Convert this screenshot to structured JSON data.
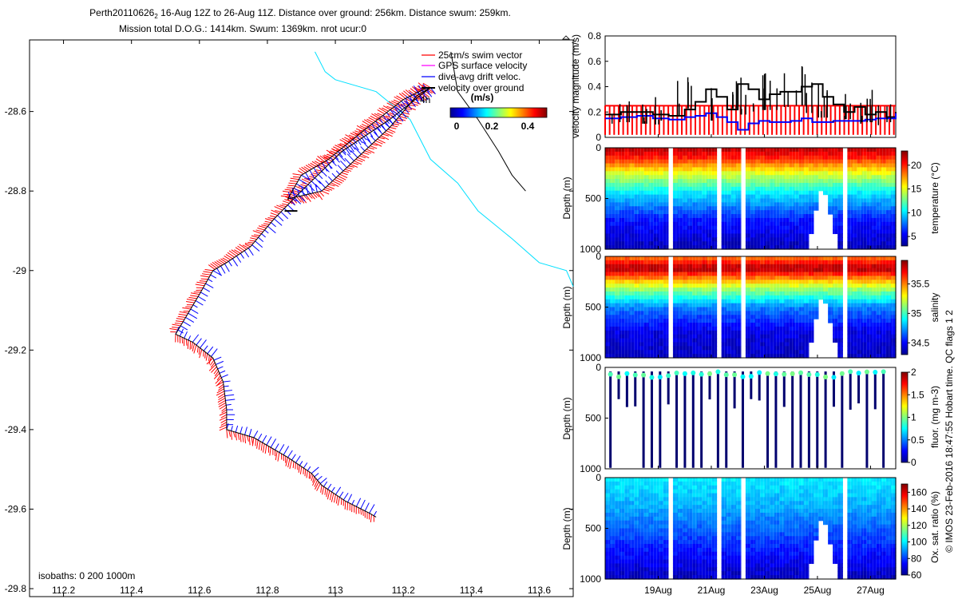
{
  "header": {
    "title_line1": "Perth20110626",
    "title_sub": "2",
    "title_rest": " 16-Aug 12Z to 26-Aug 11Z. Distance over ground: 256km. Distance swum: 259km.",
    "title_line2": "Mission total D.O.G.: 1414km. Swum: 1369km. nrot ucur:0"
  },
  "side_note": "© IMOS 23-Feb-2016 18:47:55 Hobart time. QC flags 1  2",
  "colors": {
    "swim": "#ff0000",
    "gps": "#ff00ff",
    "drift": "#0000ff",
    "ground": "#000000",
    "isobath": "#00e0ff"
  },
  "chart_data": [
    {
      "type": "line",
      "name": "track-map",
      "xlabel": "",
      "ylabel": "",
      "xlim": [
        112.1,
        113.7
      ],
      "ylim": [
        -29.82,
        -28.42
      ],
      "xticks": [
        112.2,
        112.4,
        112.6,
        112.8,
        113,
        113.2,
        113.4,
        113.6
      ],
      "xtick_labels": [
        "112.2",
        "112.4",
        "112.6",
        "112.8",
        "113",
        "113.2",
        "113.4",
        "113.6"
      ],
      "yticks": [
        -28.6,
        -28.8,
        -29,
        -29.2,
        -29.4,
        -29.6,
        -29.8
      ],
      "ytick_labels": [
        "-28.6",
        "-28.8",
        "-29",
        "-29.2",
        "-29.4",
        "-29.6",
        "-29.8"
      ],
      "legend": [
        "25cm/s swim vector",
        "GPS surface velocity",
        "dive-avg drift veloc.",
        "velocity over ground"
      ],
      "legend_label_4h": "4h",
      "colorbar_title": "(m/s)",
      "colorbar_ticks": [
        "0",
        "0.2",
        "0.4"
      ],
      "isobath_label": "isobaths: 0   200  1000m",
      "track": [
        {
          "lon": 113.27,
          "lat": -28.54
        },
        {
          "lon": 113.2,
          "lat": -28.57
        },
        {
          "lon": 113.08,
          "lat": -28.65
        },
        {
          "lon": 112.98,
          "lat": -28.72
        },
        {
          "lon": 112.9,
          "lat": -28.76
        },
        {
          "lon": 112.86,
          "lat": -28.82
        },
        {
          "lon": 112.96,
          "lat": -28.8
        },
        {
          "lon": 113.06,
          "lat": -28.72
        },
        {
          "lon": 113.16,
          "lat": -28.64
        },
        {
          "lon": 113.24,
          "lat": -28.56
        },
        {
          "lon": 113.28,
          "lat": -28.54
        },
        {
          "lon": 113.16,
          "lat": -28.62
        },
        {
          "lon": 113.02,
          "lat": -28.7
        },
        {
          "lon": 112.9,
          "lat": -28.8
        },
        {
          "lon": 112.82,
          "lat": -28.87
        },
        {
          "lon": 112.75,
          "lat": -28.94
        },
        {
          "lon": 112.68,
          "lat": -28.98
        },
        {
          "lon": 112.64,
          "lat": -29.0
        },
        {
          "lon": 112.6,
          "lat": -29.06
        },
        {
          "lon": 112.53,
          "lat": -29.16
        },
        {
          "lon": 112.58,
          "lat": -29.18
        },
        {
          "lon": 112.64,
          "lat": -29.22
        },
        {
          "lon": 112.67,
          "lat": -29.28
        },
        {
          "lon": 112.68,
          "lat": -29.35
        },
        {
          "lon": 112.68,
          "lat": -29.4
        },
        {
          "lon": 112.76,
          "lat": -29.42
        },
        {
          "lon": 112.86,
          "lat": -29.47
        },
        {
          "lon": 112.93,
          "lat": -29.51
        },
        {
          "lon": 112.96,
          "lat": -29.54
        },
        {
          "lon": 113.03,
          "lat": -29.58
        },
        {
          "lon": 113.1,
          "lat": -29.61
        },
        {
          "lon": 113.12,
          "lat": -29.62
        }
      ],
      "isobath_0": [
        {
          "lon": 112.94,
          "lat": -28.45
        },
        {
          "lon": 112.97,
          "lat": -28.5
        },
        {
          "lon": 113.0,
          "lat": -28.52
        },
        {
          "lon": 113.12,
          "lat": -28.55
        },
        {
          "lon": 113.22,
          "lat": -28.62
        },
        {
          "lon": 113.28,
          "lat": -28.72
        },
        {
          "lon": 113.36,
          "lat": -28.78
        },
        {
          "lon": 113.42,
          "lat": -28.85
        },
        {
          "lon": 113.52,
          "lat": -28.92
        },
        {
          "lon": 113.6,
          "lat": -28.98
        },
        {
          "lon": 113.68,
          "lat": -29.0
        },
        {
          "lon": 113.7,
          "lat": -29.04
        }
      ],
      "isobath_200": [
        {
          "lon": 113.34,
          "lat": -28.45
        },
        {
          "lon": 113.36,
          "lat": -28.55
        },
        {
          "lon": 113.42,
          "lat": -28.62
        },
        {
          "lon": 113.48,
          "lat": -28.7
        },
        {
          "lon": 113.52,
          "lat": -28.76
        },
        {
          "lon": 113.56,
          "lat": -28.8
        }
      ]
    },
    {
      "type": "line",
      "name": "velocity-magnitude",
      "ylabel": "velocity magnitude (m/s)",
      "xlim": [
        17.0,
        27.95
      ],
      "ylim": [
        0,
        0.8
      ],
      "yticks": [
        0,
        0.2,
        0.4,
        0.6,
        0.8
      ],
      "ytick_labels": [
        "0",
        "0.2",
        "0.4",
        "0.6",
        "0.8"
      ],
      "series": [
        {
          "name": "velocity over ground",
          "color": "#000000",
          "x": [
            17.0,
            17.6,
            18.2,
            18.8,
            19.4,
            20.0,
            20.4,
            20.8,
            21.2,
            21.6,
            22.0,
            22.4,
            22.8,
            23.2,
            23.6,
            24.0,
            24.4,
            24.8,
            25.2,
            25.6,
            26.0,
            26.4,
            26.8,
            27.2,
            27.6,
            27.95
          ],
          "y": [
            0.18,
            0.2,
            0.2,
            0.18,
            0.17,
            0.22,
            0.28,
            0.38,
            0.32,
            0.22,
            0.42,
            0.38,
            0.3,
            0.34,
            0.36,
            0.36,
            0.4,
            0.42,
            0.32,
            0.26,
            0.2,
            0.24,
            0.18,
            0.2,
            0.16,
            0.2
          ]
        },
        {
          "name": "dive-avg drift veloc.",
          "color": "#0000ff",
          "x": [
            17.0,
            17.6,
            18.2,
            18.8,
            19.4,
            20.0,
            20.4,
            20.8,
            21.2,
            21.6,
            22.0,
            22.4,
            22.8,
            23.2,
            23.6,
            24.0,
            24.4,
            24.8,
            25.2,
            25.6,
            26.0,
            26.4,
            26.8,
            27.2,
            27.6,
            27.95
          ],
          "y": [
            0.15,
            0.16,
            0.17,
            0.15,
            0.14,
            0.16,
            0.17,
            0.19,
            0.16,
            0.12,
            0.06,
            0.11,
            0.13,
            0.12,
            0.12,
            0.13,
            0.15,
            0.12,
            0.12,
            0.13,
            0.13,
            0.13,
            0.14,
            0.15,
            0.15,
            0.19
          ]
        },
        {
          "name": "25cm/s swim vector",
          "color": "#ff0000",
          "constant": 0.25
        }
      ]
    },
    {
      "type": "heatmap",
      "name": "temperature-section",
      "ylabel": "Depth (m)",
      "colorbar_label": "temperature (°C)",
      "ylim": [
        0,
        1000
      ],
      "yticks": [
        0,
        500,
        1000
      ],
      "ytick_labels": [
        "0",
        "500",
        "1000"
      ],
      "clim": [
        3,
        23
      ],
      "colorbar_ticks": [
        5,
        10,
        15,
        20
      ],
      "colorbar_tick_labels": [
        "5",
        "10",
        "15",
        "20"
      ],
      "profile": [
        {
          "depth": 0,
          "value": 22
        },
        {
          "depth": 100,
          "value": 20
        },
        {
          "depth": 250,
          "value": 15
        },
        {
          "depth": 450,
          "value": 10
        },
        {
          "depth": 700,
          "value": 6
        },
        {
          "depth": 1000,
          "value": 4
        }
      ]
    },
    {
      "type": "heatmap",
      "name": "salinity-section",
      "ylabel": "Depth (m)",
      "colorbar_label": "salinity",
      "ylim": [
        0,
        1000
      ],
      "yticks": [
        0,
        500,
        1000
      ],
      "ytick_labels": [
        "0",
        "500",
        "1000"
      ],
      "clim": [
        34.3,
        35.9
      ],
      "colorbar_ticks": [
        34.5,
        35,
        35.5
      ],
      "colorbar_tick_labels": [
        "34.5",
        "35",
        "35.5"
      ],
      "profile": [
        {
          "depth": 0,
          "value": 35.5
        },
        {
          "depth": 120,
          "value": 35.85
        },
        {
          "depth": 300,
          "value": 35.2
        },
        {
          "depth": 500,
          "value": 34.7
        },
        {
          "depth": 750,
          "value": 34.45
        },
        {
          "depth": 1000,
          "value": 34.4
        }
      ]
    },
    {
      "type": "scatter",
      "name": "fluorescence-section",
      "ylabel": "Depth (m)",
      "colorbar_label": "fluor. (mg m-3)",
      "ylim": [
        0,
        1000
      ],
      "yticks": [
        0,
        500,
        1000
      ],
      "ytick_labels": [
        "0",
        "500",
        "1000"
      ],
      "clim": [
        0,
        2
      ],
      "colorbar_ticks": [
        0,
        0.5,
        1,
        1.5,
        2
      ],
      "colorbar_tick_labels": [
        "0",
        "0.5",
        "1",
        "1.5",
        "2"
      ]
    },
    {
      "type": "heatmap",
      "name": "oxygen-saturation-section",
      "ylabel": "Depth (m)",
      "colorbar_label": "Ox. sat. ratio (%)",
      "ylim": [
        0,
        1000
      ],
      "yticks": [
        0,
        500,
        1000
      ],
      "ytick_labels": [
        "0",
        "500",
        "1000"
      ],
      "clim": [
        60,
        170
      ],
      "colorbar_ticks": [
        60,
        80,
        100,
        120,
        140,
        160
      ],
      "colorbar_tick_labels": [
        "60",
        "80",
        "100",
        "120",
        "140",
        "160"
      ],
      "xticks": [
        19,
        21,
        23,
        25,
        27
      ],
      "xtick_labels": [
        "19Aug",
        "21Aug",
        "23Aug",
        "25Aug",
        "27Aug"
      ],
      "profile": [
        {
          "depth": 0,
          "value": 100
        },
        {
          "depth": 300,
          "value": 92
        },
        {
          "depth": 600,
          "value": 80
        },
        {
          "depth": 1000,
          "value": 66
        }
      ]
    }
  ]
}
